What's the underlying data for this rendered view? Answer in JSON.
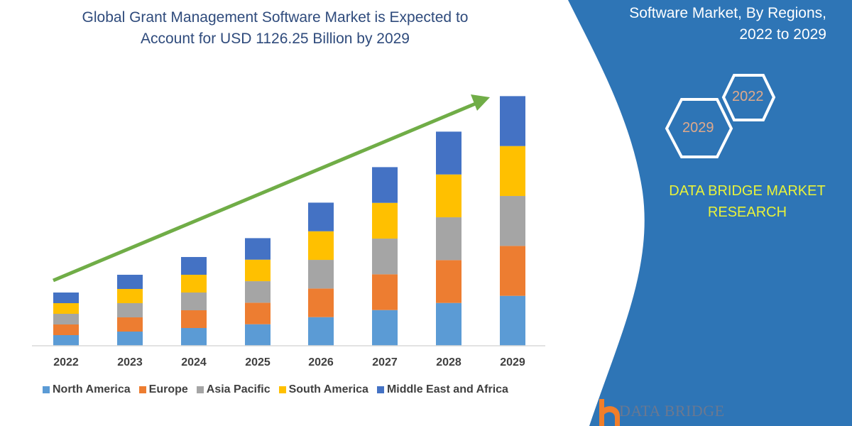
{
  "title_lines": [
    "Global Grant Management Software Market is Expected to",
    "Account for USD 1126.25 Billion by 2029"
  ],
  "side_panel": {
    "title_lines": [
      "Software Market, By Regions,",
      "2022 to 2029"
    ],
    "hexagons": [
      "2022",
      "2029"
    ],
    "brand_lines": [
      "DATA BRIDGE MARKET",
      "RESEARCH"
    ],
    "logo_text": "DATA BRIDGE",
    "panel_color": "#2e75b6",
    "brand_color": "#e8f23a"
  },
  "chart_data": {
    "type": "bar",
    "stacked": true,
    "title": "Global Grant Management Software Market is Expected to Account for USD 1126.25 Billion by 2029",
    "categories": [
      "2022",
      "2023",
      "2024",
      "2025",
      "2026",
      "2027",
      "2028",
      "2029"
    ],
    "series": [
      {
        "name": "North America",
        "color": "#5b9bd5",
        "values": [
          48,
          64,
          80,
          97,
          129,
          161,
          193,
          225
        ]
      },
      {
        "name": "Europe",
        "color": "#ed7d31",
        "values": [
          48,
          64,
          80,
          97,
          129,
          161,
          193,
          225
        ]
      },
      {
        "name": "Asia Pacific",
        "color": "#a5a5a5",
        "values": [
          48,
          64,
          80,
          97,
          129,
          161,
          193,
          225
        ]
      },
      {
        "name": "South America",
        "color": "#ffc000",
        "values": [
          48,
          64,
          80,
          97,
          129,
          161,
          193,
          225
        ]
      },
      {
        "name": "Middle East and Africa",
        "color": "#4472c4",
        "values": [
          48,
          64,
          80,
          97,
          129,
          161,
          193,
          225
        ]
      }
    ],
    "xlabel": "",
    "ylabel": "",
    "y_axis_shown": false,
    "grid": false,
    "legend": "bottom",
    "trend_arrow_color": "#70ad47"
  }
}
